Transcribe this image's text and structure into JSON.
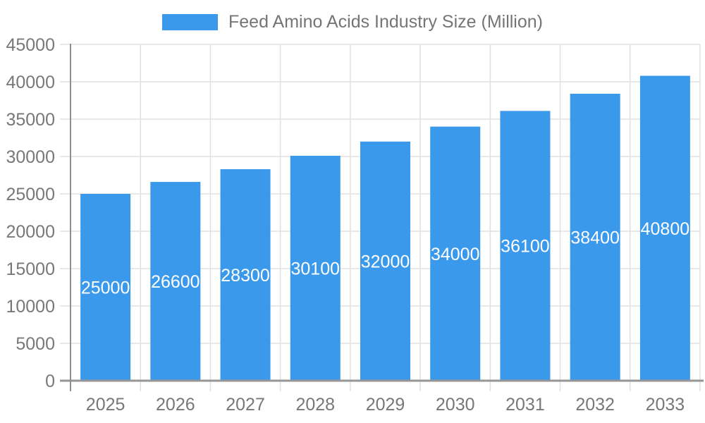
{
  "legend": {
    "label": "Feed Amino Acids Industry Size (Million)",
    "swatch_color": "#3B99EC"
  },
  "colors": {
    "bar": "#3B99EC",
    "axis_line": "#969696",
    "grid_line": "#E0E0E0",
    "tick_label": "#787878",
    "data_label": "#FFFFFF",
    "background": "#FFFFFF"
  },
  "chart_data": {
    "type": "bar",
    "title": "Feed Amino Acids Industry Size (Million)",
    "categories": [
      "2025",
      "2026",
      "2027",
      "2028",
      "2029",
      "2030",
      "2031",
      "2032",
      "2033"
    ],
    "values": [
      25000,
      26600,
      28300,
      30100,
      32000,
      34000,
      36100,
      38400,
      40800
    ],
    "data_labels": [
      "25000",
      "26600",
      "28300",
      "30100",
      "32000",
      "34000",
      "36100",
      "38400",
      "40800"
    ],
    "xlabel": "",
    "ylabel": "",
    "ylim": [
      0,
      45000
    ],
    "yticks": [
      0,
      5000,
      10000,
      15000,
      20000,
      25000,
      30000,
      35000,
      40000,
      45000
    ],
    "grid": true,
    "legend_position": "top-center",
    "data_label_position": "inside-center"
  }
}
